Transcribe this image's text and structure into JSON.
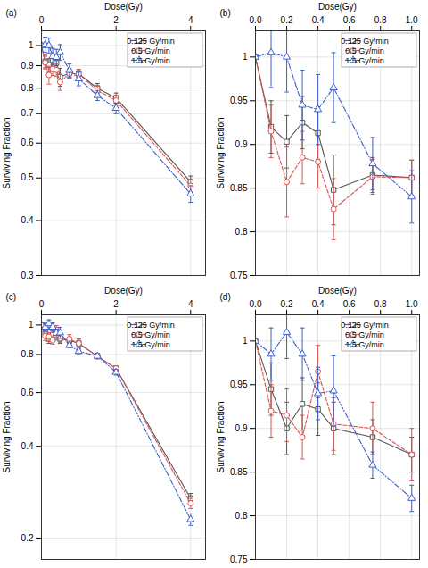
{
  "chart_data": [
    {
      "type": "line",
      "title": "(a)",
      "x_label": "Dose(Gy)",
      "y_label": "Surviving Fraction",
      "x": [
        0,
        0.1,
        0.2,
        0.3,
        0.4,
        0.5,
        0.75,
        1,
        1.5,
        2,
        4
      ],
      "xlim": [
        0,
        4.4
      ],
      "xticks": [
        0,
        2,
        4
      ],
      "ylim": [
        0.3,
        1.08
      ],
      "yticks": [
        0.3,
        0.4,
        0.5,
        0.6,
        0.7,
        0.8,
        0.9,
        1
      ],
      "log": "y",
      "grid": true,
      "legend": "top-right",
      "series": [
        {
          "name": "0.125 Gy/min",
          "color": "#555555",
          "marker": "square",
          "line_style": "solid",
          "values": [
            1,
            0.92,
            0.903,
            0.925,
            0.913,
            0.848,
            0.865,
            0.862,
            0.8,
            0.76,
            0.49
          ],
          "errors": [
            0,
            0.03,
            0.03,
            0.03,
            0.03,
            0.04,
            0.02,
            0.02,
            0.02,
            0.02,
            0.015
          ]
        },
        {
          "name": "0.5 Gy/min",
          "color": "#d9534f",
          "marker": "circle",
          "line_style": "dashed",
          "values": [
            1,
            0.915,
            0.857,
            0.885,
            0.88,
            0.826,
            0.863,
            0.862,
            0.79,
            0.75,
            0.48
          ],
          "errors": [
            0,
            0.03,
            0.04,
            0.03,
            0.03,
            0.035,
            0.02,
            0.02,
            0.02,
            0.02,
            0.015
          ]
        },
        {
          "name": "1.5 Gy/min",
          "color": "#3a5fcd",
          "marker": "triangle",
          "line_style": "dashdot",
          "values": [
            1,
            1.005,
            1.0,
            0.945,
            0.94,
            0.965,
            0.878,
            0.84,
            0.77,
            0.72,
            0.46
          ],
          "errors": [
            0,
            0.04,
            0.04,
            0.04,
            0.04,
            0.04,
            0.03,
            0.03,
            0.02,
            0.02,
            0.02
          ]
        }
      ]
    },
    {
      "type": "line",
      "title": "(b)",
      "x_label": "Dose(Gy)",
      "y_label": "Surviving Fraction",
      "x": [
        0,
        0.1,
        0.2,
        0.3,
        0.4,
        0.5,
        0.75,
        1
      ],
      "xlim": [
        0,
        1.05
      ],
      "xticks": [
        {
          "value": 0,
          "label": "0.0"
        },
        {
          "value": 0.2,
          "label": "0.2"
        },
        {
          "value": 0.4,
          "label": "0.4"
        },
        {
          "value": 0.6,
          "label": "0.6"
        },
        {
          "value": 0.8,
          "label": "0.8"
        },
        {
          "value": 1,
          "label": "1.0"
        }
      ],
      "ylim": [
        0.75,
        1.03
      ],
      "yticks": [
        0.75,
        0.8,
        0.85,
        0.9,
        0.95,
        1
      ],
      "grid": true,
      "legend": "top-right",
      "series": [
        {
          "name": "0.125 Gy/min",
          "color": "#555555",
          "marker": "square",
          "line_style": "solid",
          "values": [
            1,
            0.92,
            0.903,
            0.925,
            0.913,
            0.848,
            0.865,
            0.862
          ],
          "errors": [
            0,
            0.03,
            0.03,
            0.03,
            0.03,
            0.04,
            0.02,
            0.02
          ]
        },
        {
          "name": "0.5 Gy/min",
          "color": "#d9534f",
          "marker": "circle",
          "line_style": "dashed",
          "values": [
            1,
            0.915,
            0.857,
            0.885,
            0.88,
            0.826,
            0.863,
            0.862
          ],
          "errors": [
            0,
            0.03,
            0.04,
            0.03,
            0.03,
            0.035,
            0.02,
            0.02
          ]
        },
        {
          "name": "1.5 Gy/min",
          "color": "#3a5fcd",
          "marker": "triangle",
          "line_style": "dashdot",
          "values": [
            1,
            1.005,
            1.0,
            0.945,
            0.94,
            0.965,
            0.878,
            0.84
          ],
          "errors": [
            0,
            0.04,
            0.04,
            0.04,
            0.04,
            0.04,
            0.03,
            0.03
          ]
        }
      ]
    },
    {
      "type": "line",
      "title": "(c)",
      "x_label": "Dose(Gy)",
      "y_label": "Surviving Fraction",
      "x": [
        0,
        0.1,
        0.2,
        0.3,
        0.4,
        0.5,
        0.75,
        1,
        1.5,
        2,
        4
      ],
      "xlim": [
        0,
        4.4
      ],
      "xticks": [
        0,
        2,
        4
      ],
      "ylim": [
        0.17,
        1.08
      ],
      "yticks": [
        0.2,
        0.4,
        0.6,
        0.8,
        1
      ],
      "log": "y",
      "grid": true,
      "legend": "top-right",
      "series": [
        {
          "name": "0.125 Gy/min",
          "color": "#555555",
          "marker": "square",
          "line_style": "solid",
          "values": [
            1,
            0.945,
            0.9,
            0.928,
            0.922,
            0.9,
            0.89,
            0.87,
            0.79,
            0.72,
            0.27
          ],
          "errors": [
            0,
            0.03,
            0.03,
            0.03,
            0.03,
            0.03,
            0.02,
            0.02,
            0.015,
            0.015,
            0.01
          ]
        },
        {
          "name": "0.5 Gy/min",
          "color": "#d9534f",
          "marker": "circle",
          "line_style": "dashed",
          "values": [
            1,
            0.92,
            0.915,
            0.89,
            0.965,
            0.905,
            0.9,
            0.87,
            0.79,
            0.72,
            0.26
          ],
          "errors": [
            0,
            0.03,
            0.03,
            0.025,
            0.03,
            0.03,
            0.03,
            0.03,
            0.015,
            0.015,
            0.01
          ]
        },
        {
          "name": "1.5 Gy/min",
          "color": "#3a5fcd",
          "marker": "triangle",
          "line_style": "dashdot",
          "values": [
            1,
            0.985,
            1.01,
            0.985,
            0.94,
            0.943,
            0.858,
            0.82,
            0.79,
            0.7,
            0.23
          ],
          "errors": [
            0,
            0.03,
            0.03,
            0.03,
            0.03,
            0.04,
            0.015,
            0.015,
            0.015,
            0.015,
            0.01
          ]
        }
      ]
    },
    {
      "type": "line",
      "title": "(d)",
      "x_label": "Dose(Gy)",
      "y_label": "Surviving Fraction",
      "x": [
        0,
        0.1,
        0.2,
        0.3,
        0.4,
        0.5,
        0.75,
        1
      ],
      "xlim": [
        0,
        1.05
      ],
      "xticks": [
        {
          "value": 0,
          "label": "0.0"
        },
        {
          "value": 0.2,
          "label": "0.2"
        },
        {
          "value": 0.4,
          "label": "0.4"
        },
        {
          "value": 0.6,
          "label": "0.6"
        },
        {
          "value": 0.8,
          "label": "0.8"
        },
        {
          "value": 1,
          "label": "1.0"
        }
      ],
      "ylim": [
        0.75,
        1.03
      ],
      "yticks": [
        0.75,
        0.8,
        0.85,
        0.9,
        0.95,
        1
      ],
      "grid": true,
      "legend": "top-right",
      "series": [
        {
          "name": "0.125 Gy/min",
          "color": "#555555",
          "marker": "square",
          "line_style": "solid",
          "values": [
            1,
            0.945,
            0.9,
            0.928,
            0.922,
            0.9,
            0.89,
            0.87
          ],
          "errors": [
            0,
            0.03,
            0.03,
            0.03,
            0.03,
            0.03,
            0.02,
            0.02
          ]
        },
        {
          "name": "0.5 Gy/min",
          "color": "#d9534f",
          "marker": "circle",
          "line_style": "dashed",
          "values": [
            1,
            0.92,
            0.915,
            0.89,
            0.965,
            0.905,
            0.9,
            0.87
          ],
          "errors": [
            0,
            0.03,
            0.03,
            0.025,
            0.03,
            0.03,
            0.03,
            0.03
          ]
        },
        {
          "name": "1.5 Gy/min",
          "color": "#3a5fcd",
          "marker": "triangle",
          "line_style": "dashdot",
          "values": [
            1,
            0.985,
            1.01,
            0.985,
            0.94,
            0.943,
            0.858,
            0.82
          ],
          "errors": [
            0,
            0.03,
            0.03,
            0.03,
            0.03,
            0.04,
            0.015,
            0.015
          ]
        }
      ]
    }
  ]
}
